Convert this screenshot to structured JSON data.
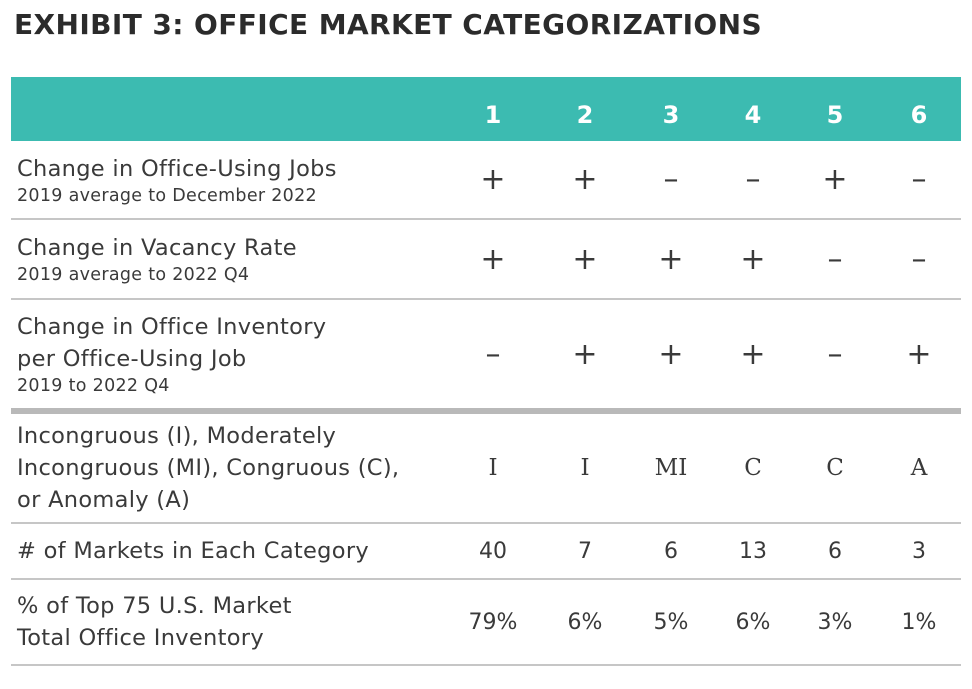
{
  "title": "EXHIBIT 3: OFFICE MARKET CATEGORIZATIONS",
  "table": {
    "columns": [
      "1",
      "2",
      "3",
      "4",
      "5",
      "6"
    ],
    "rows": [
      {
        "label_lines": [
          "Change in Office-Using Jobs"
        ],
        "sublabel": "2019 average to December 2022",
        "values": [
          "+",
          "+",
          "–",
          "–",
          "+",
          "–"
        ]
      },
      {
        "label_lines": [
          "Change in Vacancy Rate"
        ],
        "sublabel": "2019 average to 2022 Q4",
        "values": [
          "+",
          "+",
          "+",
          "+",
          "–",
          "–"
        ]
      },
      {
        "label_lines": [
          "Change in Office Inventory",
          "per Office-Using Job"
        ],
        "sublabel": "2019 to 2022 Q4",
        "values": [
          "–",
          "+",
          "+",
          "+",
          "–",
          "+"
        ]
      },
      {
        "label_lines": [
          "Incongruous (I), Moderately",
          "Incongruous (MI), Congruous (C),",
          "or Anomaly (A)"
        ],
        "values": [
          "I",
          "I",
          "MI",
          "C",
          "C",
          "A"
        ]
      },
      {
        "label_lines": [
          "# of Markets in Each Category"
        ],
        "values": [
          "40",
          "7",
          "6",
          "13",
          "6",
          "3"
        ]
      },
      {
        "label_lines": [
          "% of Top 75 U.S. Market",
          "Total Office Inventory"
        ],
        "values": [
          "79%",
          "6%",
          "5%",
          "6%",
          "3%",
          "1%"
        ]
      }
    ]
  }
}
